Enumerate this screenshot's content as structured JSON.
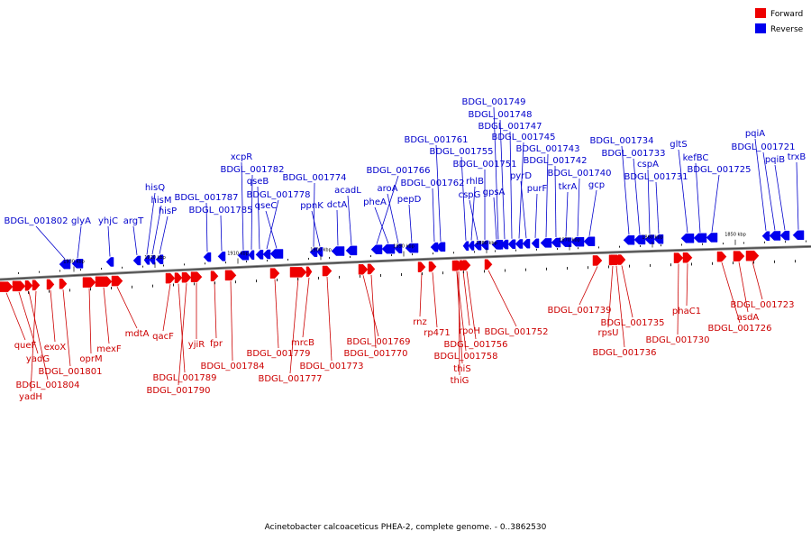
{
  "caption": "Acinetobacter calcoaceticus PHEA-2, complete genome. - 0..3862530",
  "legend": {
    "forward": {
      "label": "Forward",
      "color": "#ee0000"
    },
    "reverse": {
      "label": "Reverse",
      "color": "#0000ee"
    }
  },
  "ticks": [
    "1930 kbp",
    "1920 kbp",
    "1910 kbp",
    "1900 kbp",
    "1890 kbp",
    "1880 kbp",
    "1870 kbp",
    "1860 kbp",
    "1850 kbp"
  ],
  "reverse_genes": [
    "BDGL_001802",
    "glyA",
    "yhjC",
    "argT",
    "hisQ",
    "hisM",
    "hisP",
    "BDGL_001787",
    "BDGL_001785",
    "xcpR",
    "BDGL_001782",
    "qseB",
    "BDGL_001778",
    "qseC",
    "BDGL_001774",
    "ppnK",
    "dctA",
    "acadL",
    "BDGL_001766",
    "pheA",
    "aroA",
    "pepD",
    "BDGL_001762",
    "BDGL_001761",
    "BDGL_001755",
    "rhlB",
    "cspG",
    "BDGL_001751",
    "gpsA",
    "BDGL_001749",
    "BDGL_001748",
    "BDGL_001747",
    "BDGL_001745",
    "pyrD",
    "purF",
    "BDGL_001743",
    "BDGL_001742",
    "tkrA",
    "BDGL_001740",
    "gcp",
    "BDGL_001734",
    "BDGL_001733",
    "cspA",
    "BDGL_001731",
    "gltS",
    "kefBC",
    "BDGL_001725",
    "pqiA",
    "BDGL_001721",
    "pqiB",
    "trxB"
  ],
  "forward_genes": [
    "queF",
    "yadG",
    "BDGL_001804",
    "yadH",
    "exoX",
    "BDGL_001801",
    "oprM",
    "mexF",
    "mdtA",
    "qacF",
    "BDGL_001789",
    "BDGL_001790",
    "yjiR",
    "fpr",
    "BDGL_001784",
    "BDGL_001779",
    "BDGL_001777",
    "mrcB",
    "BDGL_001773",
    "BDGL_001769",
    "BDGL_001770",
    "rnz",
    "rp471",
    "rpoH",
    "BDGL_001756",
    "BDGL_001758",
    "thiS",
    "thiG",
    "BDGL_001752",
    "BDGL_001739",
    "rpsU",
    "BDGL_001735",
    "BDGL_001736",
    "BDGL_001730",
    "phaC1",
    "BDGL_001726",
    "asdA",
    "BDGL_001723"
  ]
}
